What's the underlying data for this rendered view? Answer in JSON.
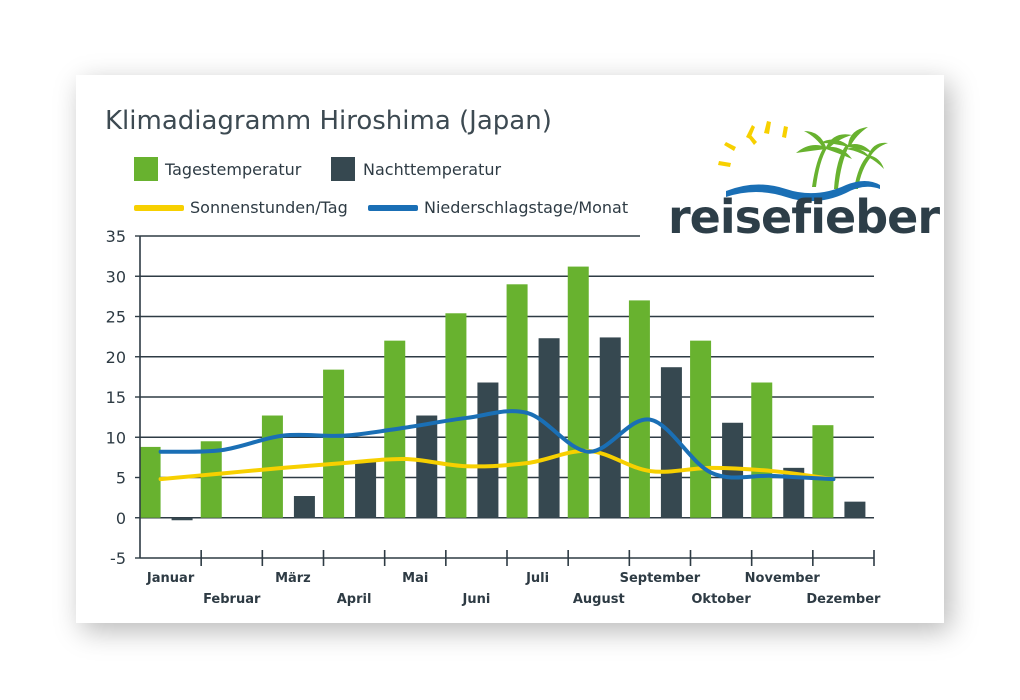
{
  "colors": {
    "day": "#68b22f",
    "night": "#364850",
    "sun": "#f7d000",
    "rain": "#1a6fb5",
    "grid": "#2e3b44"
  },
  "legend": {
    "day": "Tagestemperatur",
    "night": "Nachttemperatur",
    "sun": "Sonnenstunden/Tag",
    "rain": "Niederschlagstage/Monat"
  },
  "logo": {
    "text": "reisefieber",
    "icon": "sun-palm-logo-icon"
  },
  "chart_data": {
    "type": "bar",
    "title": "Klimadiagramm Hiroshima (Japan)",
    "categories": [
      "Januar",
      "Februar",
      "März",
      "April",
      "Mai",
      "Juni",
      "Juli",
      "August",
      "September",
      "Oktober",
      "November",
      "Dezember"
    ],
    "ylim": [
      -5,
      35
    ],
    "yticks": [
      35,
      30,
      25,
      20,
      15,
      10,
      5,
      0,
      -5
    ],
    "grid": true,
    "legend_position": "top-left",
    "series": [
      {
        "name": "Tagestemperatur",
        "type": "bar",
        "values": [
          8.8,
          9.5,
          12.7,
          18.4,
          22.0,
          25.4,
          29.0,
          31.2,
          27.0,
          22.0,
          16.8,
          11.5
        ]
      },
      {
        "name": "Nachttemperatur",
        "type": "bar",
        "values": [
          -0.3,
          0.0,
          2.7,
          7.0,
          12.7,
          16.8,
          22.3,
          22.4,
          18.7,
          11.8,
          6.2,
          2.0
        ]
      },
      {
        "name": "Sonnenstunden/Tag",
        "type": "line",
        "values": [
          4.8,
          5.5,
          6.2,
          6.8,
          7.3,
          6.4,
          6.8,
          8.3,
          5.8,
          6.2,
          5.8,
          4.8
        ]
      },
      {
        "name": "Niederschlagstage/Monat",
        "type": "line",
        "values": [
          8.2,
          8.4,
          10.2,
          10.2,
          11.2,
          12.4,
          13.0,
          8.2,
          12.2,
          5.6,
          5.2,
          4.8
        ]
      }
    ]
  }
}
